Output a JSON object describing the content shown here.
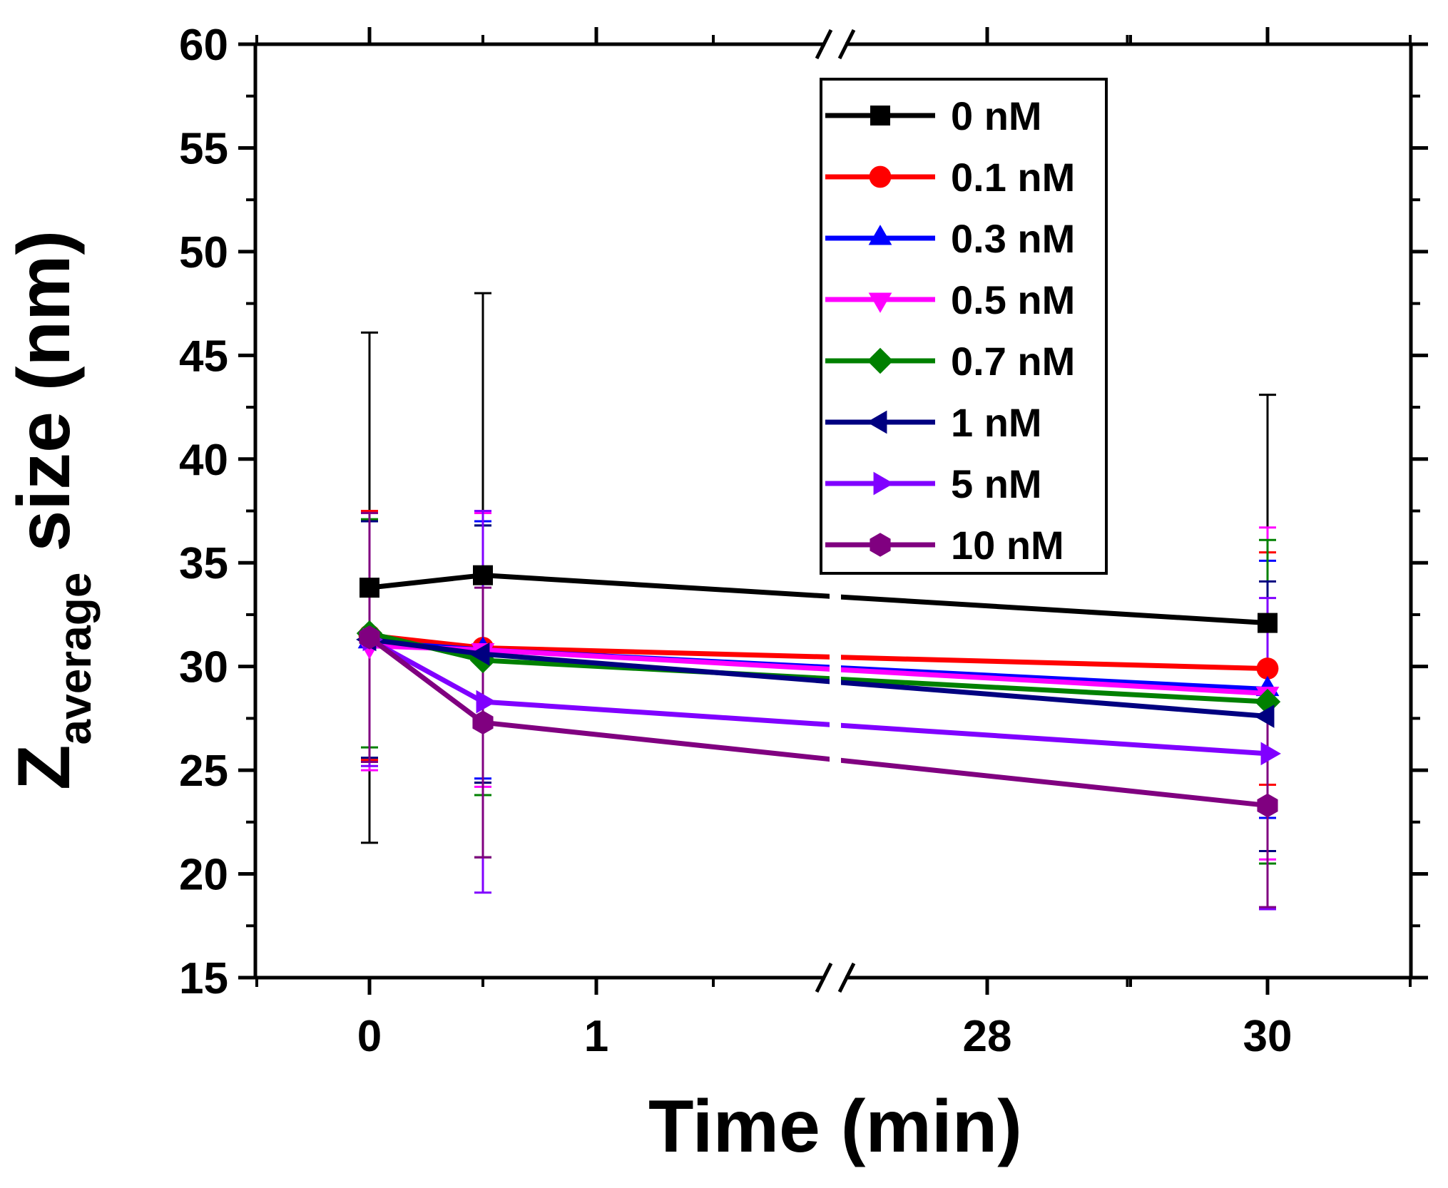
{
  "chart_data": {
    "type": "line",
    "title": "",
    "xlabel": "Time (min)",
    "ylabel": {
      "main": "Z",
      "subscript": "average",
      "rest": " size (nm)"
    },
    "ylim": [
      15,
      60
    ],
    "yticks": [
      15,
      20,
      25,
      30,
      35,
      40,
      45,
      50,
      55,
      60
    ],
    "xtick_labels": [
      "0",
      "1",
      "28",
      "30"
    ],
    "axis_break": true,
    "legend_position": "top-right",
    "x": [
      0,
      0.5,
      30
    ],
    "series": [
      {
        "name": "0 nM",
        "color": "#000000",
        "marker": "square",
        "values": [
          33.8,
          34.4,
          32.1
        ],
        "errors": [
          12.3,
          13.6,
          11.0
        ]
      },
      {
        "name": "0.1 nM",
        "color": "#ff0000",
        "marker": "circle",
        "values": [
          31.5,
          30.9,
          29.9
        ],
        "errors": [
          6.0,
          6.5,
          5.6
        ]
      },
      {
        "name": "0.3 nM",
        "color": "#0000ff",
        "marker": "triangle-up",
        "values": [
          31.2,
          30.8,
          28.9
        ],
        "errors": [
          5.8,
          6.2,
          6.2
        ]
      },
      {
        "name": "0.5 nM",
        "color": "#ff00ff",
        "marker": "triangle-down",
        "values": [
          31.0,
          30.8,
          28.7
        ],
        "errors": [
          6.0,
          6.6,
          8.0
        ]
      },
      {
        "name": "0.7 nM",
        "color": "#008000",
        "marker": "diamond",
        "values": [
          31.6,
          30.3,
          28.3
        ],
        "errors": [
          5.5,
          6.5,
          7.8
        ]
      },
      {
        "name": "1 nM",
        "color": "#000080",
        "marker": "triangle-left",
        "values": [
          31.3,
          30.6,
          27.6
        ],
        "errors": [
          5.7,
          6.2,
          6.5
        ]
      },
      {
        "name": "5 nM",
        "color": "#8000ff",
        "marker": "triangle-right",
        "values": [
          31.3,
          28.3,
          25.8
        ],
        "errors": [
          6.1,
          9.2,
          7.5
        ]
      },
      {
        "name": "10 nM",
        "color": "#800080",
        "marker": "hexagon",
        "values": [
          31.4,
          27.3,
          23.3
        ],
        "errors": [
          6.0,
          6.5,
          4.9
        ]
      }
    ]
  }
}
